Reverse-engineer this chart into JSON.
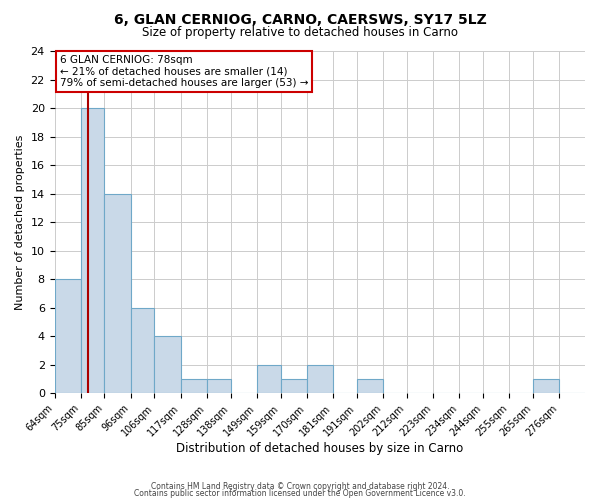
{
  "title": "6, GLAN CERNIOG, CARNO, CAERSWS, SY17 5LZ",
  "subtitle": "Size of property relative to detached houses in Carno",
  "xlabel": "Distribution of detached houses by size in Carno",
  "ylabel": "Number of detached properties",
  "bin_labels": [
    "64sqm",
    "75sqm",
    "85sqm",
    "96sqm",
    "106sqm",
    "117sqm",
    "128sqm",
    "138sqm",
    "149sqm",
    "159sqm",
    "170sqm",
    "181sqm",
    "191sqm",
    "202sqm",
    "212sqm",
    "223sqm",
    "234sqm",
    "244sqm",
    "255sqm",
    "265sqm",
    "276sqm"
  ],
  "bin_edges": [
    64,
    75,
    85,
    96,
    106,
    117,
    128,
    138,
    149,
    159,
    170,
    181,
    191,
    202,
    212,
    223,
    234,
    244,
    255,
    265,
    276
  ],
  "bar_heights": [
    8,
    20,
    14,
    6,
    4,
    1,
    1,
    0,
    2,
    1,
    2,
    0,
    1,
    0,
    0,
    0,
    0,
    0,
    0,
    1,
    0
  ],
  "bar_color": "#c9d9e8",
  "bar_edge_color": "#6fa8c8",
  "grid_color": "#cccccc",
  "background_color": "#ffffff",
  "annotation_box_color": "#cc0000",
  "property_line_color": "#aa0000",
  "property_value": 78,
  "annotation_title": "6 GLAN CERNIOG: 78sqm",
  "annotation_line1": "← 21% of detached houses are smaller (14)",
  "annotation_line2": "79% of semi-detached houses are larger (53) →",
  "ylim": [
    0,
    24
  ],
  "yticks": [
    0,
    2,
    4,
    6,
    8,
    10,
    12,
    14,
    16,
    18,
    20,
    22,
    24
  ],
  "footer1": "Contains HM Land Registry data © Crown copyright and database right 2024.",
  "footer2": "Contains public sector information licensed under the Open Government Licence v3.0."
}
